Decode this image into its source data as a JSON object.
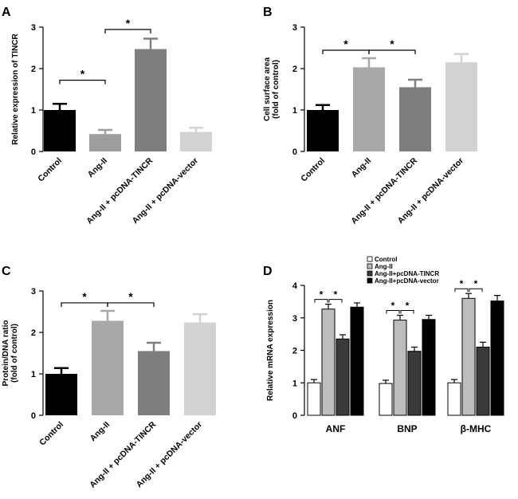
{
  "chart_data": [
    {
      "panel": "A",
      "type": "bar",
      "ylabel": "Relative expression of TINCR",
      "ylim": [
        0,
        3
      ],
      "yticks": [
        0,
        1,
        2,
        3
      ],
      "categories": [
        "Control",
        "Ang-II",
        "Ang-II + pcDNA-TINCR",
        "Ang-II + pcDNA-vector"
      ],
      "values": [
        1.0,
        0.42,
        2.47,
        0.47
      ],
      "errors": [
        0.15,
        0.1,
        0.25,
        0.1
      ],
      "colors": [
        "#000000",
        "#9d9d9d",
        "#7e7e7e",
        "#d2d2d2"
      ],
      "significance": [
        {
          "from": 0,
          "to": 1,
          "label": "*"
        },
        {
          "from": 1,
          "to": 2,
          "label": "*"
        }
      ]
    },
    {
      "panel": "B",
      "type": "bar",
      "ylabel": "Cell surface area",
      "ylabel2": "(fold of control)",
      "ylim": [
        0,
        3
      ],
      "yticks": [
        0,
        1,
        2,
        3
      ],
      "categories": [
        "Control",
        "Ang-II",
        "Ang-II + pcDNA-TINCR",
        "Ang-II + pcDNA-vector"
      ],
      "values": [
        1.0,
        2.03,
        1.55,
        2.15
      ],
      "errors": [
        0.12,
        0.22,
        0.18,
        0.2
      ],
      "colors": [
        "#000000",
        "#a8a8a8",
        "#7e7e7e",
        "#d2d2d2"
      ],
      "significance": [
        {
          "from": 0,
          "to": 1,
          "label": "*"
        },
        {
          "from": 1,
          "to": 2,
          "label": "*"
        }
      ]
    },
    {
      "panel": "C",
      "type": "bar",
      "ylabel": "Protein/DNA ratio",
      "ylabel2": "(fold of control)",
      "ylim": [
        0,
        3
      ],
      "yticks": [
        0,
        1,
        2,
        3
      ],
      "categories": [
        "Control",
        "Ang-II",
        "Ang-II + pcDNA-TINCR",
        "Ang-II + pcDNA-vector"
      ],
      "values": [
        1.0,
        2.28,
        1.55,
        2.24
      ],
      "errors": [
        0.14,
        0.24,
        0.2,
        0.2
      ],
      "colors": [
        "#000000",
        "#a8a8a8",
        "#7e7e7e",
        "#d2d2d2"
      ],
      "significance": [
        {
          "from": 0,
          "to": 1,
          "label": "*"
        },
        {
          "from": 1,
          "to": 2,
          "label": "*"
        }
      ]
    },
    {
      "panel": "D",
      "type": "bar",
      "ylabel": "Relative mRNA expression",
      "ylim": [
        0,
        4
      ],
      "yticks": [
        0,
        1,
        2,
        3,
        4
      ],
      "categories": [
        "ANF",
        "BNP",
        "β-MHC"
      ],
      "series": [
        {
          "name": "Control",
          "color": "#ffffff",
          "values": [
            1.0,
            0.98,
            1.0
          ],
          "errors": [
            0.1,
            0.1,
            0.1
          ]
        },
        {
          "name": "Ang-II",
          "color": "#bdbdbd",
          "values": [
            3.27,
            2.93,
            3.6
          ],
          "errors": [
            0.15,
            0.15,
            0.15
          ]
        },
        {
          "name": "Ang-II+pcDNA-TINCR",
          "color": "#3a3a3a",
          "values": [
            2.35,
            1.97,
            2.1
          ],
          "errors": [
            0.13,
            0.13,
            0.15
          ]
        },
        {
          "name": "Ang-II+pcDNA-vector",
          "color": "#000000",
          "values": [
            3.33,
            2.95,
            3.52
          ],
          "errors": [
            0.13,
            0.13,
            0.17
          ]
        }
      ],
      "significance": [
        {
          "category": 0,
          "from": 0,
          "to": 1,
          "label": "*"
        },
        {
          "category": 0,
          "from": 1,
          "to": 2,
          "label": "*"
        },
        {
          "category": 1,
          "from": 0,
          "to": 1,
          "label": "*"
        },
        {
          "category": 1,
          "from": 1,
          "to": 2,
          "label": "*"
        },
        {
          "category": 2,
          "from": 0,
          "to": 1,
          "label": "*"
        },
        {
          "category": 2,
          "from": 1,
          "to": 2,
          "label": "*"
        }
      ]
    }
  ]
}
